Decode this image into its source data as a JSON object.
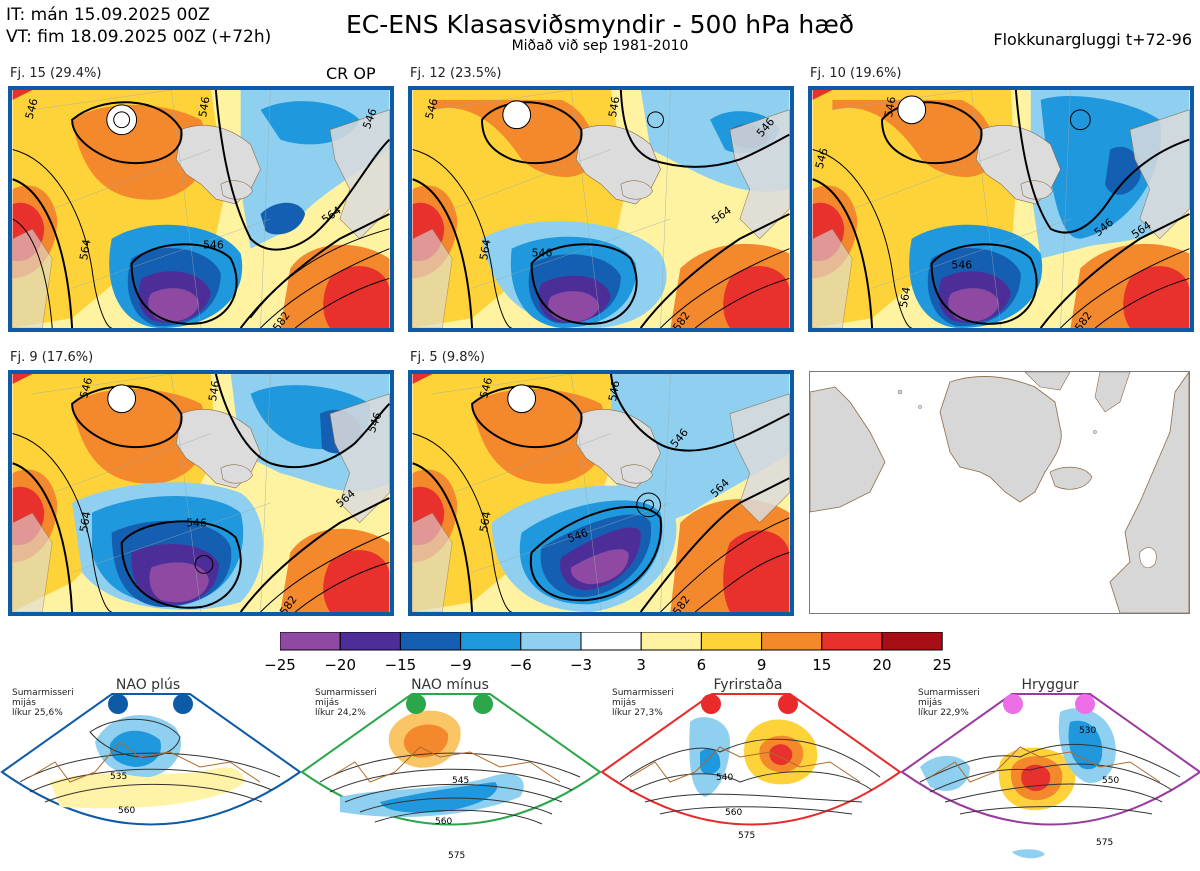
{
  "header": {
    "it": "IT: mán 15.09.2025 00Z",
    "vt": "VT: fim 18.09.2025 00Z  (+72h)",
    "title": "EC-ENS Klasasviðsmyndir - 500 hPa hæð",
    "subtitle": "Miðað við sep 1981-2010",
    "window": "Flokkunargluggi t+72-96"
  },
  "panels": [
    {
      "label": "Fj. 15 (29.4%)",
      "contours": [
        "546",
        "546",
        "564",
        "564",
        "546",
        "582",
        "546"
      ],
      "badge": "CR OP"
    },
    {
      "label": "Fj. 12 (23.5%)",
      "contours": [
        "546",
        "546",
        "564",
        "564",
        "546",
        "582",
        "546"
      ]
    },
    {
      "label": "Fj. 10 (19.6%)",
      "contours": [
        "546",
        "546",
        "564",
        "564",
        "546",
        "582",
        "546"
      ]
    },
    {
      "label": "Fj. 9 (17.6%)",
      "contours": [
        "546",
        "546",
        "564",
        "564",
        "546",
        "582",
        "546"
      ]
    },
    {
      "label": "Fj. 5 (9.8%)",
      "contours": [
        "546",
        "546",
        "564",
        "564",
        "546",
        "582",
        "546"
      ]
    }
  ],
  "colorbar": {
    "ticks": [
      "−25",
      "−20",
      "−15",
      "−9",
      "−6",
      "−3",
      "3",
      "6",
      "9",
      "15",
      "20",
      "25"
    ],
    "colors": [
      "#8e4aa3",
      "#4d2e98",
      "#155fb3",
      "#1f98dd",
      "#8fd0f0",
      "#ffffff",
      "#fff2a0",
      "#fed33a",
      "#f3892c",
      "#e8302c",
      "#a50f15"
    ]
  },
  "regimes": [
    {
      "name": "NAO plús",
      "note": [
        "Sumarmisseri",
        "mijás",
        "líkur 25,6%"
      ],
      "color": "#0d5aa6",
      "contours": [
        "535",
        "560"
      ]
    },
    {
      "name": "NAO mínus",
      "note": [
        "Sumarmisseri",
        "mijás",
        "líkur 24,2%"
      ],
      "color": "#2ca64a",
      "contours": [
        "545",
        "560",
        "575"
      ]
    },
    {
      "name": "Fyrirstaða",
      "note": [
        "Sumarmisseri",
        "mijás",
        "líkur 27,3%"
      ],
      "color": "#e82a2a",
      "contours": [
        "540",
        "560",
        "575"
      ]
    },
    {
      "name": "Hryggur",
      "note": [
        "Sumarmisseri",
        "mijás",
        "líkur 22,9%"
      ],
      "color": "#9a3aa0",
      "contours": [
        "530",
        "550",
        "575"
      ]
    }
  ]
}
